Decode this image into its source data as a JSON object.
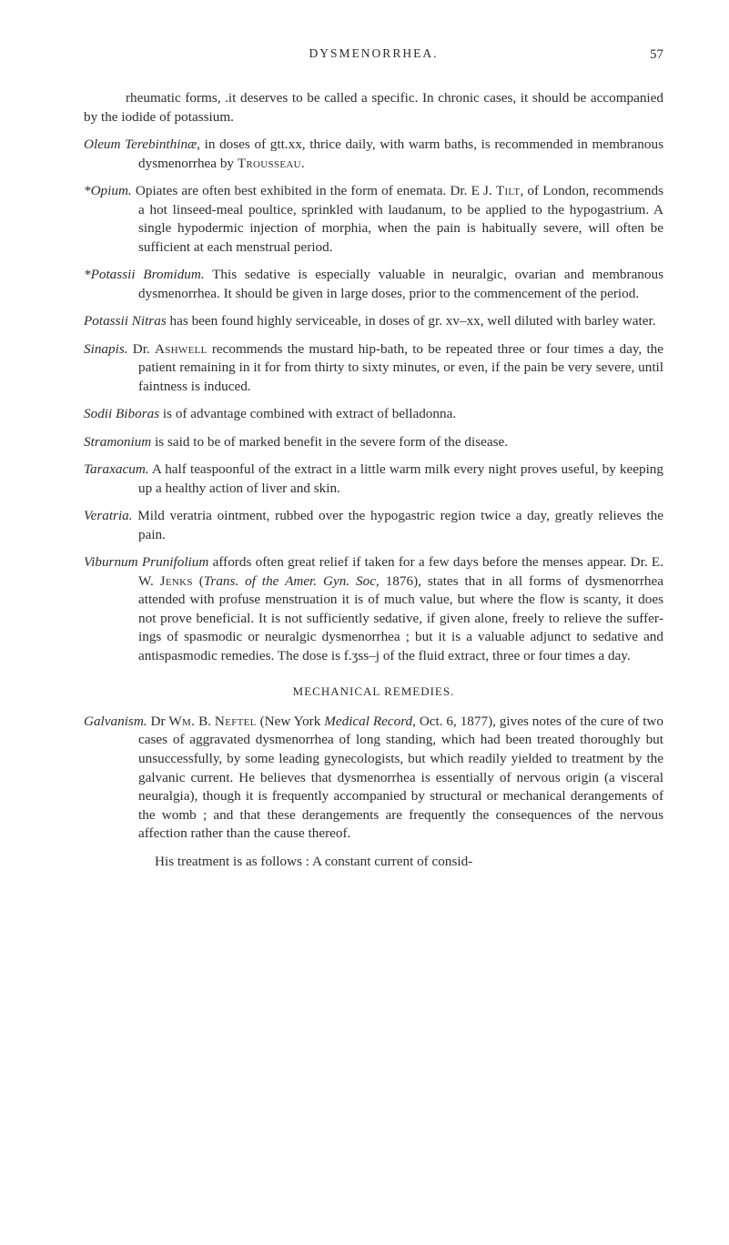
{
  "header": {
    "running_title": "DYSMENORRHEA.",
    "page_number": "57"
  },
  "entries": {
    "rheumatic": "rheumatic forms, .it deserves to be called a specific.  In chronic cases, it should be accompanied by the iodide of potassium.",
    "oleum_lead": "Oleum Terebinthinæ,",
    "oleum_body": " in doses of gtt.xx, thrice daily, with warm baths, is recommended in membranous dysmenorrhea by ",
    "oleum_sc": "Trousseau.",
    "opium_lead": "*Opium.",
    "opium_body1": "  Opiates are often best exhibited in the form of enemata.  Dr. E  J. ",
    "opium_sc1": "Tilt",
    "opium_body2": ", of London, recommends a hot linseed-meal poul­tice, sprinkled with laudanum, to be applied to the hypogas­trium.  A single hypodermic injection of morphia, when the pain is habitually severe, will often be sufficient at each men­strual period.",
    "potbrom_lead": "*Potassii Bromidum.",
    "potbrom_body": "  This sedative is especially valuable in neuralgic, ovarian and membranous dysmenorrhea.  It should be given in large doses, prior to the commencement of the period.",
    "potnit_lead": "Potassii Nitras",
    "potnit_body": " has been found highly serviceable, in doses of gr. xv–xx, well diluted with barley water.",
    "sinapis_lead": "Sinapis.",
    "sinapis_body1": "  Dr. ",
    "sinapis_sc": "Ashwell",
    "sinapis_body2": " recommends the mustard hip-bath, to be repeated three or four times a day, the patient remaining in it for from thirty to sixty minutes, or even, if the pain be very severe, until faintness is induced.",
    "sodii_lead": "Sodii Biboras",
    "sodii_body": " is of advantage combined with extract of belladonna.",
    "stram_lead": "Stramonium",
    "stram_body": " is said to be of marked benefit in the severe form of the disease.",
    "tarax_lead": "Taraxacum.",
    "tarax_body": "  A half teaspoonful of the extract in a little warm milk every night proves useful, by keeping up a healthy action of liver and skin.",
    "verat_lead": "Veratria.",
    "verat_body": "  Mild veratria ointment, rubbed over the hypogastric region twice a day, greatly relieves the pain.",
    "vib_lead": "Viburnum Prunifolium",
    "vib_body1": " affords often great relief if taken for a few days before the menses appear.  Dr. E. W. ",
    "vib_sc1": "Jenks",
    "vib_body2": " (",
    "vib_it1": "Trans. of the Amer. Gyn. Soc",
    "vib_body3": ", 1876), states that in all forms of dysmenor­rhea attended with profuse menstruation it is of much value, but where the flow is scanty, it does not prove beneficial.  It is not sufficiently sedative, if given alone, freely to relieve the suffer­ings of spasmodic or neuralgic dysmenorrhea ; but it is a valu­able adjunct to sedative and antispasmodic remedies.  The dose is f.ʒss–j of the fluid extract, three or four times a day.",
    "mech_head": "MECHANICAL REMEDIES.",
    "galv_lead": "Galvanism.",
    "galv_body1": "  Dr ",
    "galv_sc1": "Wm.",
    "galv_body1b": " B. ",
    "galv_sc2": "Neftel",
    "galv_body2": " (New York ",
    "galv_it1": "Medical Record,",
    "galv_body3": " Oct. 6, 1877), gives notes of the cure of two cases of aggravated dys­menorrhea of long standing, which had been treated thor­oughly but unsuccessfully, by some leading gynecologists, but which readily yielded to treatment by the galvanic current.  He believes that dysmenorrhea is essentially of nervous origin (a visceral neuralgia), though it is frequently accompanied by structural or mechanical derangements of the womb ; and that these derangements are frequently the consequences of the ner­vous affection rather than the cause thereof.",
    "galv_tail": "His treatment is as follows :  A constant current of consid-"
  }
}
